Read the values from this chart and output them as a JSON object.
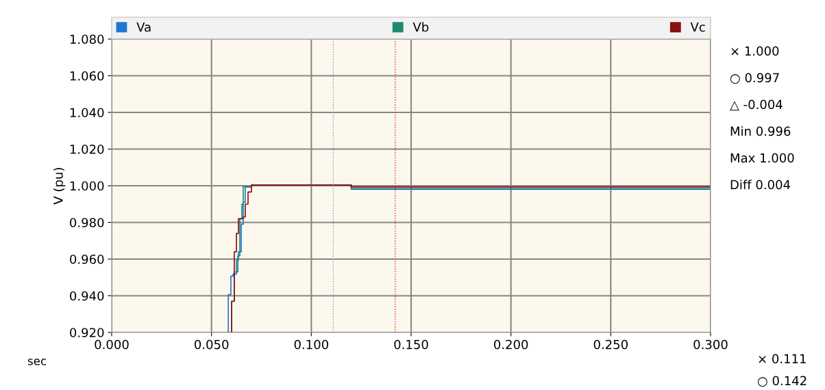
{
  "chart_data": {
    "type": "step",
    "xlabel": "sec",
    "ylabel": "V (pu)",
    "xlim": [
      0,
      0.3
    ],
    "xticks": [
      {
        "value": 0,
        "label": "0.000"
      },
      {
        "value": 0.05,
        "label": "0.050"
      },
      {
        "value": 0.1,
        "label": "0.100"
      },
      {
        "value": 0.15,
        "label": "0.150"
      },
      {
        "value": 0.2,
        "label": "0.200"
      },
      {
        "value": 0.25,
        "label": "0.250"
      },
      {
        "value": 0.3,
        "label": "0.300"
      }
    ],
    "ylim": [
      0.92,
      1.08
    ],
    "yticks": [
      {
        "value": 0.92,
        "label": "0.920"
      },
      {
        "value": 0.94,
        "label": "0.940"
      },
      {
        "value": 0.96,
        "label": "0.960"
      },
      {
        "value": 0.98,
        "label": "0.980"
      },
      {
        "value": 1.0,
        "label": "1.000"
      },
      {
        "value": 1.02,
        "label": "1.020"
      },
      {
        "value": 1.04,
        "label": "1.040"
      },
      {
        "value": 1.06,
        "label": "1.060"
      },
      {
        "value": 1.08,
        "label": "1.080"
      }
    ],
    "grid": true,
    "legend": "top",
    "marker": "none",
    "line_style": "solid",
    "series": [
      {
        "name": "Va",
        "color": "#1f77d4",
        "x": [
          0.058,
          0.0584,
          0.0597,
          0.0608,
          0.0625,
          0.0635,
          0.0649,
          0.0659,
          0.0669,
          0.07,
          0.12,
          0.3
        ],
        "values": [
          0.92,
          0.9406,
          0.9507,
          0.9518,
          0.9593,
          0.964,
          0.979,
          0.991,
          0.9993,
          1.0004,
          0.9981,
          0.9981
        ]
      },
      {
        "name": "Vb",
        "color": "#1e8a70",
        "x": [
          0.0594,
          0.0601,
          0.0614,
          0.0632,
          0.0642,
          0.0642,
          0.0652,
          0.0659,
          0.07,
          0.12,
          0.3
        ],
        "values": [
          0.92,
          0.937,
          0.953,
          0.9618,
          0.97,
          0.982,
          0.99,
          0.9996,
          1.0004,
          0.9984,
          0.9984
        ]
      },
      {
        "name": "Vc",
        "color": "#8b1010",
        "x": [
          0.059,
          0.0601,
          0.0614,
          0.0625,
          0.0635,
          0.0659,
          0.0669,
          0.0683,
          0.07,
          0.12,
          0.3
        ],
        "values": [
          0.92,
          0.937,
          0.964,
          0.974,
          0.982,
          0.983,
          0.99,
          0.9966,
          1.0004,
          0.9993,
          0.9993
        ]
      }
    ],
    "ref_lines": [
      {
        "axis": "x",
        "value": 0.111,
        "color": "#8899bb",
        "line_style": "dotted"
      },
      {
        "axis": "x",
        "value": 0.142,
        "color": "#dd2222",
        "line_style": "dotted"
      }
    ],
    "annotations": [
      "× 1.000",
      "○ 0.997",
      "△ -0.004",
      "Min 0.996",
      "Max 1.000",
      "Diff 0.004",
      "× 0.111",
      "○ 0.142"
    ]
  }
}
